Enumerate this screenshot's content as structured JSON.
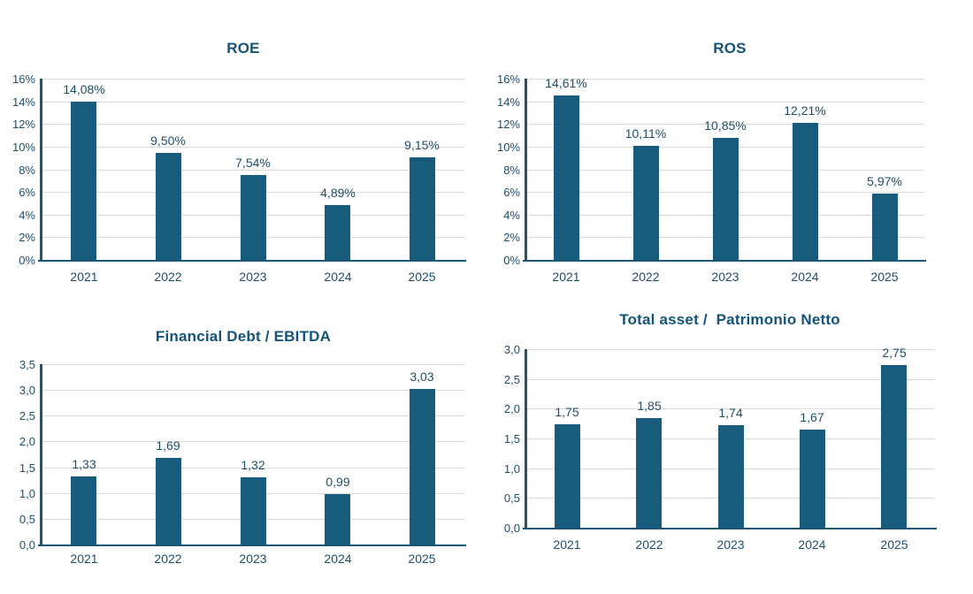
{
  "page": {
    "background": "#FFFFFF"
  },
  "theme": {
    "bar_color": "#175C7D",
    "title_color": "#14547A",
    "text_color": "#1F4E6B",
    "axis_color": "#1C5672",
    "grid_color": "#D9D9D9"
  },
  "chart_data": [
    {
      "type": "bar",
      "title": "ROE",
      "categories": [
        "2021",
        "2022",
        "2023",
        "2024",
        "2025"
      ],
      "values": [
        14.08,
        9.5,
        7.54,
        4.89,
        9.15
      ],
      "value_labels": [
        "14,08%",
        "9,50%",
        "7,54%",
        "4,89%",
        "9,15%"
      ],
      "xlabel": "",
      "ylabel": "",
      "ylim": [
        0,
        16
      ],
      "ytick_step": 2,
      "yticks": [
        "0%",
        "2%",
        "4%",
        "6%",
        "8%",
        "10%",
        "12%",
        "14%",
        "16%"
      ],
      "grid": true,
      "legend": "none",
      "value_label_position": "above"
    },
    {
      "type": "bar",
      "title": "ROS",
      "categories": [
        "2021",
        "2022",
        "2023",
        "2024",
        "2025"
      ],
      "values": [
        14.61,
        10.11,
        10.85,
        12.21,
        5.97
      ],
      "value_labels": [
        "14,61%",
        "10,11%",
        "10,85%",
        "12,21%",
        "5,97%"
      ],
      "xlabel": "",
      "ylabel": "",
      "ylim": [
        0,
        16
      ],
      "ytick_step": 2,
      "yticks": [
        "0%",
        "2%",
        "4%",
        "6%",
        "8%",
        "10%",
        "12%",
        "14%",
        "16%"
      ],
      "grid": true,
      "legend": "none",
      "value_label_position": "above"
    },
    {
      "type": "bar",
      "title": "Financial Debt / EBITDA",
      "categories": [
        "2021",
        "2022",
        "2023",
        "2024",
        "2025"
      ],
      "values": [
        1.33,
        1.69,
        1.32,
        0.99,
        3.03
      ],
      "value_labels": [
        "1,33",
        "1,69",
        "1,32",
        "0,99",
        "3,03"
      ],
      "xlabel": "",
      "ylabel": "",
      "ylim": [
        0,
        3.5
      ],
      "ytick_step": 0.5,
      "yticks": [
        "0,0",
        "0,5",
        "1,0",
        "1,5",
        "2,0",
        "2,5",
        "3,0",
        "3,5"
      ],
      "grid": true,
      "legend": "none",
      "value_label_position": "above"
    },
    {
      "type": "bar",
      "title": "Total asset /  Patrimonio Netto",
      "categories": [
        "2021",
        "2022",
        "2023",
        "2024",
        "2025"
      ],
      "values": [
        1.75,
        1.85,
        1.74,
        1.67,
        2.75
      ],
      "value_labels": [
        "1,75",
        "1,85",
        "1,74",
        "1,67",
        "2,75"
      ],
      "xlabel": "",
      "ylabel": "",
      "ylim": [
        0,
        3
      ],
      "ytick_step": 0.5,
      "yticks": [
        "0,0",
        "0,5",
        "1,0",
        "1,5",
        "2,0",
        "2,5",
        "3,0"
      ],
      "grid": true,
      "legend": "none",
      "value_label_position": "above"
    }
  ]
}
